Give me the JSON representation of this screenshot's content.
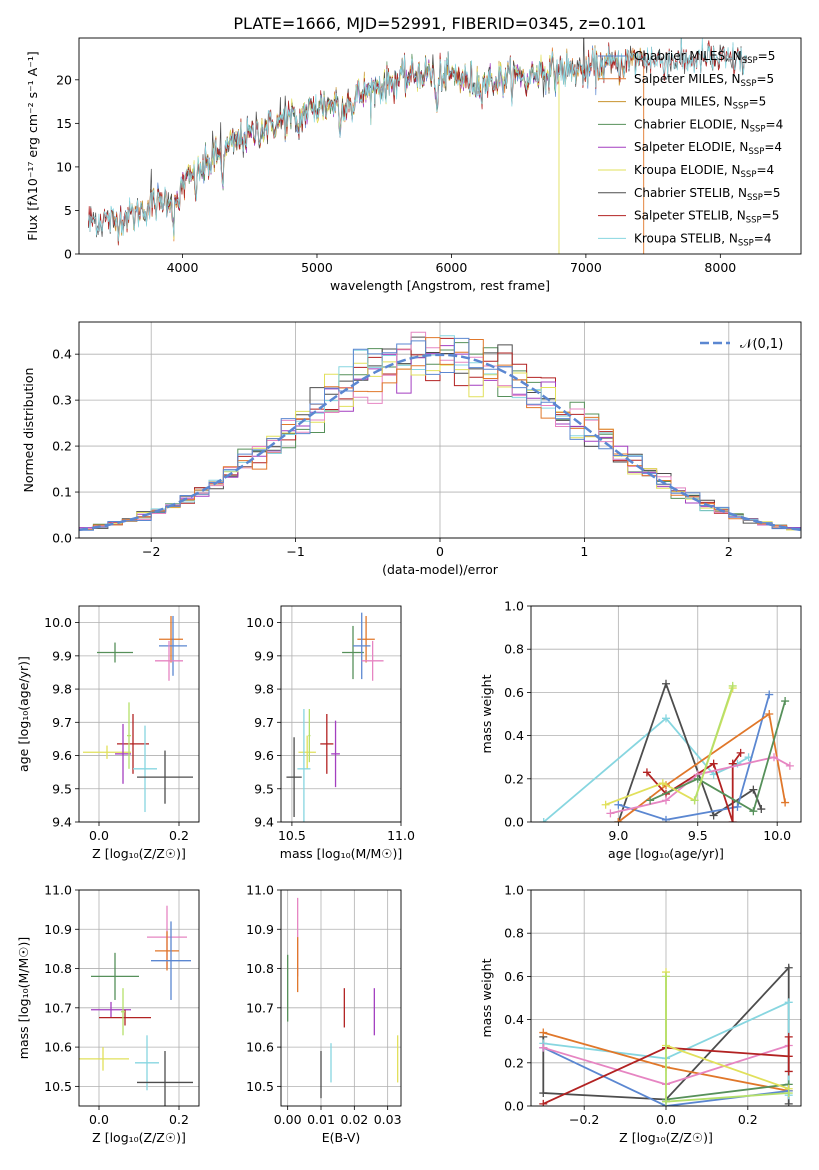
{
  "figure": {
    "title": "PLATE=1666, MJD=52991, FIBERID=0345, z=0.101"
  },
  "colors": {
    "Chabrier MILES": "#5b87d1",
    "Salpeter MILES": "#e0772a",
    "Kroupa MILES": "#c8932e",
    "Chabrier ELODIE": "#56905a",
    "Salpeter ELODIE": "#a33fc0",
    "Kroupa ELODIE": "#e1e05b",
    "Chabrier STELIB": "#4d4d4d",
    "Salpeter STELIB": "#b22222",
    "Kroupa STELIB": "#87d6e0",
    "pink": "#e685c2",
    "lime": "#b5e06a"
  },
  "chart_data": [
    {
      "type": "line",
      "panel": "spectrum",
      "xlabel": "wavelength [Angstrom, rest frame]",
      "ylabel": "Flux [fλ10⁻¹⁷ erg cm⁻² s⁻¹ A⁻¹]",
      "xlim": [
        3230,
        8600
      ],
      "ylim": [
        0,
        24.8
      ],
      "xticks": [
        4000,
        5000,
        6000,
        7000,
        8000
      ],
      "yticks": [
        0,
        5,
        10,
        15,
        20
      ],
      "grid": false,
      "legend_position": "right",
      "continuum_knots": [
        [
          3500,
          3.8
        ],
        [
          3700,
          5.0
        ],
        [
          3900,
          6.5
        ],
        [
          4000,
          8.0
        ],
        [
          4200,
          10.5
        ],
        [
          4400,
          13.0
        ],
        [
          4600,
          14.5
        ],
        [
          4800,
          15.5
        ],
        [
          5000,
          16.8
        ],
        [
          5200,
          17.5
        ],
        [
          5400,
          18.8
        ],
        [
          5600,
          20.0
        ],
        [
          5800,
          20.8
        ],
        [
          6000,
          20.5
        ],
        [
          6200,
          19.5
        ],
        [
          6400,
          20.2
        ],
        [
          6600,
          20.8
        ],
        [
          6800,
          21.0
        ],
        [
          7000,
          21.2
        ],
        [
          7200,
          21.8
        ],
        [
          7400,
          22.3
        ]
      ],
      "absorption_features": [
        [
          3933,
          3.5
        ],
        [
          3968,
          3.0
        ],
        [
          4101,
          1.5
        ],
        [
          4300,
          3.0
        ],
        [
          4861,
          2.0
        ],
        [
          5175,
          3.0
        ],
        [
          5270,
          1.8
        ],
        [
          5892,
          4.5
        ],
        [
          6563,
          2.0
        ],
        [
          7000,
          1.2
        ]
      ],
      "series": [
        {
          "name": "Chabrier MILES, N_SSP=5",
          "legend_base": "Chabrier MILES, N",
          "legend_val": "=5",
          "x_range": [
            3480,
            7430
          ]
        },
        {
          "name": "Salpeter MILES, N_SSP=5",
          "legend_base": "Salpeter MILES, N",
          "legend_val": "=5",
          "x_range": [
            3480,
            7430
          ]
        },
        {
          "name": "Kroupa MILES, N_SSP=5",
          "legend_base": "Kroupa MILES, N",
          "legend_val": "=5",
          "x_range": [
            3480,
            7430
          ]
        },
        {
          "name": "Chabrier ELODIE, N_SSP=4",
          "legend_base": "Chabrier ELODIE, N",
          "legend_val": "=4",
          "x_range": [
            3900,
            6800
          ]
        },
        {
          "name": "Salpeter ELODIE, N_SSP=4",
          "legend_base": "Salpeter ELODIE, N",
          "legend_val": "=4",
          "x_range": [
            3900,
            6800
          ]
        },
        {
          "name": "Kroupa ELODIE, N_SSP=4",
          "legend_base": "Kroupa ELODIE, N",
          "legend_val": "=4",
          "x_range": [
            3900,
            6800
          ]
        },
        {
          "name": "Chabrier STELIB, N_SSP=5",
          "legend_base": "Chabrier STELIB, N",
          "legend_val": "=5",
          "x_range": [
            3300,
            8200
          ]
        },
        {
          "name": "Salpeter STELIB, N_SSP=5",
          "legend_base": "Salpeter STELIB, N",
          "legend_val": "=5",
          "x_range": [
            3300,
            8200
          ]
        },
        {
          "name": "Kroupa STELIB, N_SSP=4",
          "legend_base": "Kroupa STELIB, N",
          "legend_val": "=4",
          "x_range": [
            3300,
            8200
          ]
        }
      ],
      "legend_subscript": "SSP"
    },
    {
      "type": "histogram",
      "panel": "residuals",
      "xlabel": "(data-model)/error",
      "ylabel": "Normed distribution",
      "xlim": [
        -2.5,
        2.5
      ],
      "ylim": [
        0,
        0.47
      ],
      "xticks": [
        -2,
        -1,
        0,
        1,
        2
      ],
      "yticks": [
        0.0,
        0.1,
        0.2,
        0.3,
        0.4
      ],
      "grid": true,
      "bin_width": 0.1,
      "bin_start": -2.5,
      "reference_curve": {
        "name": "𝒩(0,1)",
        "mean": 0,
        "sigma": 1,
        "color": "#5b87d1",
        "style": "dashed"
      },
      "series_colors": [
        "#56905a",
        "#4d4d4d",
        "#b22222",
        "#a33fc0",
        "#e1e05b",
        "#87d6e0",
        "#e685c2",
        "#e0772a",
        "#5b87d1"
      ]
    },
    {
      "type": "scatter",
      "panel": "age_vs_Z",
      "xlabel": "Z [log₁₀(Z/Z☉)]",
      "ylabel": "age  [log₁₀(age/yr)]",
      "xlim": [
        -0.05,
        0.25
      ],
      "ylim": [
        9.4,
        10.05
      ],
      "xticks": [
        0.0,
        0.2
      ],
      "yticks": [
        9.4,
        9.5,
        9.6,
        9.7,
        9.8,
        9.9,
        10.0
      ],
      "grid": true,
      "points": [
        {
          "color": "#56905a",
          "x": 0.04,
          "y": 9.91,
          "xerr": 0.045,
          "yerr": 0.03
        },
        {
          "color": "#e0772a",
          "x": 0.18,
          "y": 9.95,
          "xerr": 0.03,
          "yerr": 0.07
        },
        {
          "color": "#5b87d1",
          "x": 0.185,
          "y": 9.93,
          "xerr": 0.035,
          "yerr": 0.09
        },
        {
          "color": "#e685c2",
          "x": 0.175,
          "y": 9.885,
          "xerr": 0.035,
          "yerr": 0.06
        },
        {
          "color": "#e1e05b",
          "x": 0.02,
          "y": 9.61,
          "xerr": 0.06,
          "yerr": 0.02
        },
        {
          "color": "#b22222",
          "x": 0.085,
          "y": 9.635,
          "xerr": 0.04,
          "yerr": 0.09
        },
        {
          "color": "#a33fc0",
          "x": 0.06,
          "y": 9.605,
          "xerr": 0.02,
          "yerr": 0.09
        },
        {
          "color": "#87d6e0",
          "x": 0.115,
          "y": 9.56,
          "xerr": 0.03,
          "yerr": 0.13
        },
        {
          "color": "#4d4d4d",
          "x": 0.165,
          "y": 9.535,
          "xerr": 0.07,
          "yerr": 0.08
        },
        {
          "color": "#b5e06a",
          "x": 0.075,
          "y": 9.66,
          "xerr": 0.005,
          "yerr": 0.1
        }
      ]
    },
    {
      "type": "scatter",
      "panel": "age_vs_mass",
      "xlabel": "mass [log₁₀(M/M☉)]",
      "ylabel": "",
      "xlim": [
        10.45,
        11.0
      ],
      "ylim": [
        9.4,
        10.05
      ],
      "xticks": [
        10.5,
        11.0
      ],
      "yticks": [
        9.4,
        9.5,
        9.6,
        9.7,
        9.8,
        9.9,
        10.0
      ],
      "grid": true,
      "points": [
        {
          "color": "#56905a",
          "x": 10.78,
          "y": 9.91,
          "xerr": 0.05,
          "yerr": 0.08
        },
        {
          "color": "#e0772a",
          "x": 10.84,
          "y": 9.95,
          "xerr": 0.04,
          "yerr": 0.07
        },
        {
          "color": "#5b87d1",
          "x": 10.82,
          "y": 9.93,
          "xerr": 0.04,
          "yerr": 0.1
        },
        {
          "color": "#e685c2",
          "x": 10.87,
          "y": 9.885,
          "xerr": 0.05,
          "yerr": 0.06
        },
        {
          "color": "#b22222",
          "x": 10.66,
          "y": 9.635,
          "xerr": 0.03,
          "yerr": 0.09
        },
        {
          "color": "#a33fc0",
          "x": 10.7,
          "y": 9.605,
          "xerr": 0.02,
          "yerr": 0.1
        },
        {
          "color": "#e1e05b",
          "x": 10.57,
          "y": 9.61,
          "xerr": 0.04,
          "yerr": 0.05
        },
        {
          "color": "#87d6e0",
          "x": 10.555,
          "y": 9.56,
          "xerr": 0.03,
          "yerr": 0.18
        },
        {
          "color": "#4d4d4d",
          "x": 10.51,
          "y": 9.535,
          "xerr": 0.035,
          "yerr": 0.12
        },
        {
          "color": "#b5e06a",
          "x": 10.58,
          "y": 9.66,
          "xerr": 0.005,
          "yerr": 0.08
        }
      ]
    },
    {
      "type": "line",
      "panel": "mass_weight_vs_age",
      "xlabel": "age  [log₁₀(age/yr)]",
      "ylabel": "mass weight",
      "xlim": [
        8.45,
        10.15
      ],
      "ylim": [
        0.0,
        1.0
      ],
      "xticks": [
        9.0,
        9.5,
        10.0
      ],
      "yticks": [
        0.0,
        0.2,
        0.4,
        0.6,
        0.8,
        1.0
      ],
      "grid": true,
      "series": [
        {
          "color": "#87d6e0",
          "points": [
            [
              8.53,
              0.0
            ],
            [
              9.3,
              0.48
            ],
            [
              9.6,
              0.22
            ],
            [
              9.75,
              0.27
            ],
            [
              9.82,
              0.3
            ]
          ]
        },
        {
          "color": "#4d4d4d",
          "points": [
            [
              9.0,
              0.0
            ],
            [
              9.3,
              0.64
            ],
            [
              9.6,
              0.03
            ],
            [
              9.85,
              0.15
            ],
            [
              9.9,
              0.06
            ]
          ]
        },
        {
          "color": "#5b87d1",
          "points": [
            [
              9.0,
              0.08
            ],
            [
              9.3,
              0.01
            ],
            [
              9.75,
              0.07
            ],
            [
              9.95,
              0.59
            ]
          ]
        },
        {
          "color": "#e0772a",
          "points": [
            [
              9.0,
              0.0
            ],
            [
              9.3,
              0.17
            ],
            [
              9.95,
              0.5
            ],
            [
              10.05,
              0.09
            ]
          ]
        },
        {
          "color": "#b22222",
          "points": [
            [
              9.18,
              0.23
            ],
            [
              9.3,
              0.13
            ],
            [
              9.6,
              0.27
            ],
            [
              9.72,
              0.0
            ],
            [
              9.72,
              0.27
            ],
            [
              9.77,
              0.32
            ]
          ]
        },
        {
          "color": "#e685c2",
          "points": [
            [
              8.95,
              0.04
            ],
            [
              9.3,
              0.1
            ],
            [
              9.5,
              0.22
            ],
            [
              9.98,
              0.3
            ],
            [
              10.08,
              0.26
            ]
          ]
        },
        {
          "color": "#56905a",
          "points": [
            [
              9.2,
              0.1
            ],
            [
              9.5,
              0.2
            ],
            [
              9.85,
              0.05
            ],
            [
              10.05,
              0.56
            ]
          ]
        },
        {
          "color": "#e1e05b",
          "points": [
            [
              8.92,
              0.08
            ],
            [
              9.28,
              0.18
            ],
            [
              9.48,
              0.1
            ],
            [
              9.72,
              0.62
            ]
          ]
        },
        {
          "color": "#b5e06a",
          "points": [
            [
              9.48,
              0.1
            ],
            [
              9.72,
              0.63
            ]
          ]
        }
      ]
    },
    {
      "type": "scatter",
      "panel": "mass_vs_Z",
      "xlabel": "Z [log₁₀(Z/Z☉)]",
      "ylabel": "mass [log₁₀(M/M☉)]",
      "xlim": [
        -0.05,
        0.25
      ],
      "ylim": [
        10.45,
        11.0
      ],
      "xticks": [
        0.0,
        0.2
      ],
      "yticks": [
        10.5,
        10.6,
        10.7,
        10.8,
        10.9,
        11.0
      ],
      "grid": true,
      "points": [
        {
          "color": "#56905a",
          "x": 0.04,
          "y": 10.78,
          "xerr": 0.06,
          "yerr": 0.06
        },
        {
          "color": "#e685c2",
          "x": 0.17,
          "y": 10.88,
          "xerr": 0.05,
          "yerr": 0.08
        },
        {
          "color": "#e0772a",
          "x": 0.17,
          "y": 10.845,
          "xerr": 0.03,
          "yerr": 0.05
        },
        {
          "color": "#5b87d1",
          "x": 0.18,
          "y": 10.82,
          "xerr": 0.05,
          "yerr": 0.1
        },
        {
          "color": "#a33fc0",
          "x": 0.03,
          "y": 10.695,
          "xerr": 0.05,
          "yerr": 0.02
        },
        {
          "color": "#b22222",
          "x": 0.065,
          "y": 10.675,
          "xerr": 0.065,
          "yerr": 0.02
        },
        {
          "color": "#b5e06a",
          "x": 0.06,
          "y": 10.69,
          "xerr": 0.005,
          "yerr": 0.06
        },
        {
          "color": "#e1e05b",
          "x": 0.01,
          "y": 10.57,
          "xerr": 0.065,
          "yerr": 0.03
        },
        {
          "color": "#87d6e0",
          "x": 0.12,
          "y": 10.56,
          "xerr": 0.03,
          "yerr": 0.07
        },
        {
          "color": "#4d4d4d",
          "x": 0.165,
          "y": 10.51,
          "xerr": 0.07,
          "yerr": 0.08
        }
      ]
    },
    {
      "type": "scatter",
      "panel": "mass_vs_EBV",
      "xlabel": "E(B-V)",
      "ylabel": "",
      "xlim": [
        -0.002,
        0.034
      ],
      "ylim": [
        10.45,
        11.0
      ],
      "xticks": [
        0.0,
        0.01,
        0.02,
        0.03
      ],
      "yticks": [
        10.5,
        10.6,
        10.7,
        10.8,
        10.9,
        11.0
      ],
      "grid": true,
      "points": [
        {
          "color": "#56905a",
          "x": 0.0,
          "y": 10.75,
          "yerr": 0.085
        },
        {
          "color": "#e685c2",
          "x": 0.003,
          "y": 10.88,
          "yerr": 0.1
        },
        {
          "color": "#e0772a",
          "x": 0.003,
          "y": 10.81,
          "yerr": 0.07
        },
        {
          "color": "#4d4d4d",
          "x": 0.01,
          "y": 10.53,
          "yerr": 0.06
        },
        {
          "color": "#87d6e0",
          "x": 0.013,
          "y": 10.56,
          "yerr": 0.05
        },
        {
          "color": "#b22222",
          "x": 0.017,
          "y": 10.7,
          "yerr": 0.05
        },
        {
          "color": "#a33fc0",
          "x": 0.026,
          "y": 10.69,
          "yerr": 0.06
        },
        {
          "color": "#e1e05b",
          "x": 0.033,
          "y": 10.57,
          "yerr": 0.06
        }
      ]
    },
    {
      "type": "line",
      "panel": "mass_weight_vs_Z",
      "xlabel": "Z [log₁₀(Z/Z☉)]",
      "ylabel": "mass weight",
      "xlim": [
        -0.33,
        0.33
      ],
      "ylim": [
        0.0,
        1.0
      ],
      "xticks": [
        -0.2,
        0.0,
        0.2
      ],
      "tick_labels": [
        "−0.2",
        "0.0",
        "0.2"
      ],
      "yticks": [
        0.0,
        0.2,
        0.4,
        0.6,
        0.8,
        1.0
      ],
      "grid": true,
      "series": [
        {
          "color": "#4d4d4d",
          "points": [
            [
              -0.3,
              0.32
            ],
            [
              -0.3,
              0.06
            ],
            [
              0.0,
              0.03
            ],
            [
              0.3,
              0.64
            ],
            [
              0.3,
              0.01
            ]
          ]
        },
        {
          "color": "#87d6e0",
          "points": [
            [
              -0.3,
              0.29
            ],
            [
              0.0,
              0.22
            ],
            [
              0.3,
              0.48
            ],
            [
              0.3,
              0.05
            ]
          ]
        },
        {
          "color": "#e0772a",
          "points": [
            [
              -0.3,
              0.34
            ],
            [
              0.0,
              0.18
            ],
            [
              0.3,
              0.07
            ]
          ]
        },
        {
          "color": "#5b87d1",
          "points": [
            [
              -0.3,
              0.27
            ],
            [
              0.0,
              0.0
            ],
            [
              0.3,
              0.07
            ]
          ]
        },
        {
          "color": "#e685c2",
          "points": [
            [
              -0.3,
              0.27
            ],
            [
              0.0,
              0.1
            ],
            [
              0.3,
              0.28
            ]
          ]
        },
        {
          "color": "#b22222",
          "points": [
            [
              -0.3,
              0.01
            ],
            [
              0.0,
              0.27
            ],
            [
              0.3,
              0.23
            ],
            [
              0.3,
              0.16
            ],
            [
              0.3,
              0.32
            ]
          ]
        },
        {
          "color": "#56905a",
          "points": [
            [
              0.0,
              0.03
            ],
            [
              0.3,
              0.1
            ]
          ]
        },
        {
          "color": "#e1e05b",
          "points": [
            [
              0.0,
              0.62
            ],
            [
              0.0,
              0.28
            ],
            [
              0.3,
              0.08
            ]
          ]
        },
        {
          "color": "#b5e06a",
          "points": [
            [
              0.0,
              0.6
            ],
            [
              0.0,
              0.02
            ],
            [
              0.3,
              0.06
            ]
          ]
        }
      ]
    }
  ]
}
